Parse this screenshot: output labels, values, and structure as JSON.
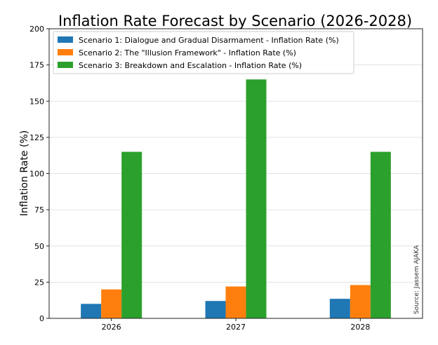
{
  "chart_data": {
    "type": "bar",
    "title": "Inflation Rate Forecast by Scenario (2026-2028)",
    "xlabel": "",
    "ylabel": "Inflation Rate (%)",
    "categories": [
      "2026",
      "2027",
      "2028"
    ],
    "ylim": [
      0,
      200
    ],
    "yticks": [
      0,
      25,
      50,
      75,
      100,
      125,
      150,
      175,
      200
    ],
    "grid": true,
    "legend_position": "top-left",
    "series": [
      {
        "name": "Scenario 1: Dialogue and Gradual Disarmament - Inflation Rate (%)",
        "values": [
          10,
          12,
          13.5
        ],
        "color": "#1f77b4"
      },
      {
        "name": "Scenario 2: The \"Illusion Framework\" - Inflation Rate (%)",
        "values": [
          20,
          22,
          23
        ],
        "color": "#ff7f0e"
      },
      {
        "name": "Scenario 3: Breakdown and Escalation - Inflation Rate (%)",
        "values": [
          115,
          165,
          115
        ],
        "color": "#2ca02c"
      }
    ],
    "annotation": "Source: Jassem AJAKA"
  }
}
